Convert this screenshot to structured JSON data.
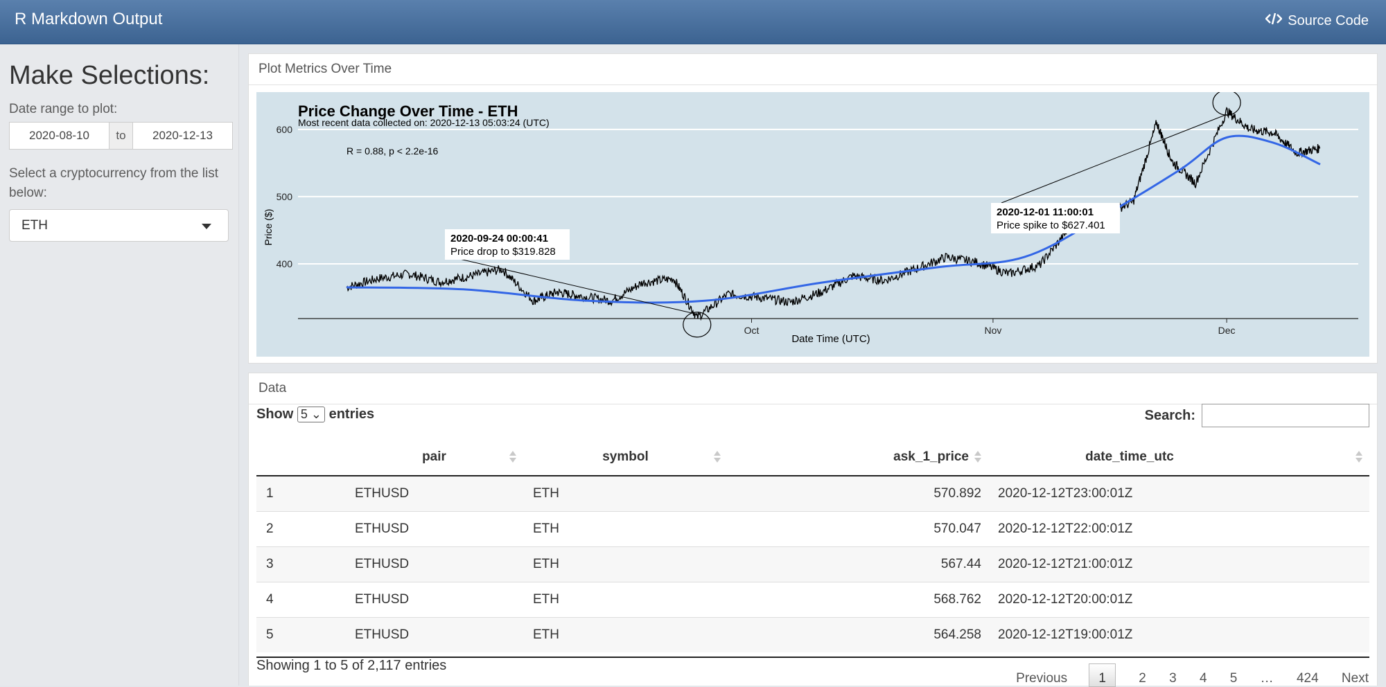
{
  "navbar": {
    "title": "R Markdown Output",
    "source_code_label": "Source Code"
  },
  "sidebar": {
    "heading": "Make Selections:",
    "date_range_label": "Date range to plot:",
    "date_start": "2020-08-10",
    "date_sep": "to",
    "date_end": "2020-12-13",
    "crypto_label": "Select a cryptocurrency from the list below:",
    "crypto_selected": "ETH"
  },
  "plot_card": {
    "header": "Plot Metrics Over Time"
  },
  "chart_data": {
    "type": "line",
    "title": "Price Change Over Time - ETH",
    "subtitle": "Most recent data collected on: 2020-12-13 05:03:24 (UTC)",
    "xlabel": "Date Time (UTC)",
    "ylabel": "Price ($)",
    "x_ticks": [
      "Oct",
      "Nov",
      "Dec"
    ],
    "y_ticks": [
      400,
      500,
      600
    ],
    "ylim": [
      300,
      640
    ],
    "xlim": [
      "2020-08-10",
      "2020-12-13"
    ],
    "grid": true,
    "stat_label": "R = 0.88, p < 2.2e-16",
    "series": [
      {
        "x": [
          "2020-08-10",
          "2020-08-14",
          "2020-08-18",
          "2020-08-22",
          "2020-08-26",
          "2020-08-30",
          "2020-09-03",
          "2020-09-06",
          "2020-09-09",
          "2020-09-13",
          "2020-09-17",
          "2020-09-21",
          "2020-09-24",
          "2020-09-28",
          "2020-10-02",
          "2020-10-06",
          "2020-10-10",
          "2020-10-14",
          "2020-10-18",
          "2020-10-22",
          "2020-10-26",
          "2020-10-30",
          "2020-11-03",
          "2020-11-07",
          "2020-11-11",
          "2020-11-15",
          "2020-11-19",
          "2020-11-22",
          "2020-11-24",
          "2020-11-27",
          "2020-12-01",
          "2020-12-04",
          "2020-12-07",
          "2020-12-10",
          "2020-12-13"
        ],
        "values": [
          365,
          378,
          385,
          373,
          382,
          392,
          345,
          358,
          352,
          345,
          372,
          378,
          320,
          355,
          350,
          343,
          358,
          382,
          375,
          392,
          410,
          402,
          385,
          398,
          455,
          472,
          492,
          610,
          552,
          520,
          627,
          600,
          595,
          565,
          572
        ]
      },
      {
        "x": [
          "2020-08-10",
          "2020-08-25",
          "2020-09-10",
          "2020-09-25",
          "2020-10-10",
          "2020-10-25",
          "2020-11-05",
          "2020-11-15",
          "2020-11-25",
          "2020-12-01",
          "2020-12-07",
          "2020-12-13"
        ],
        "values": [
          365,
          362,
          345,
          345,
          372,
          395,
          410,
          470,
          540,
          588,
          580,
          548
        ]
      }
    ],
    "annotations": [
      {
        "x": "2020-09-24",
        "y": 319.828,
        "label_top": "2020-09-24 00:00:41",
        "label_bottom": "Price drop to $319.828"
      },
      {
        "x": "2020-12-01",
        "y": 627.401,
        "label_top": "2020-12-01 11:00:01",
        "label_bottom": "Price spike to $627.401"
      }
    ]
  },
  "data_card": {
    "header": "Data",
    "show_label": "Show",
    "entries_label": "entries",
    "page_length": "5",
    "search_label": "Search:",
    "columns": [
      "",
      "pair",
      "symbol",
      "ask_1_price",
      "date_time_utc"
    ],
    "rows": [
      [
        "1",
        "ETHUSD",
        "ETH",
        "570.892",
        "2020-12-12T23:00:01Z"
      ],
      [
        "2",
        "ETHUSD",
        "ETH",
        "570.047",
        "2020-12-12T22:00:01Z"
      ],
      [
        "3",
        "ETHUSD",
        "ETH",
        "567.44",
        "2020-12-12T21:00:01Z"
      ],
      [
        "4",
        "ETHUSD",
        "ETH",
        "568.762",
        "2020-12-12T20:00:01Z"
      ],
      [
        "5",
        "ETHUSD",
        "ETH",
        "564.258",
        "2020-12-12T19:00:01Z"
      ]
    ],
    "info": "Showing 1 to 5 of 2,117 entries",
    "pagination": [
      "Previous",
      "1",
      "2",
      "3",
      "4",
      "5",
      "…",
      "424",
      "Next"
    ]
  }
}
